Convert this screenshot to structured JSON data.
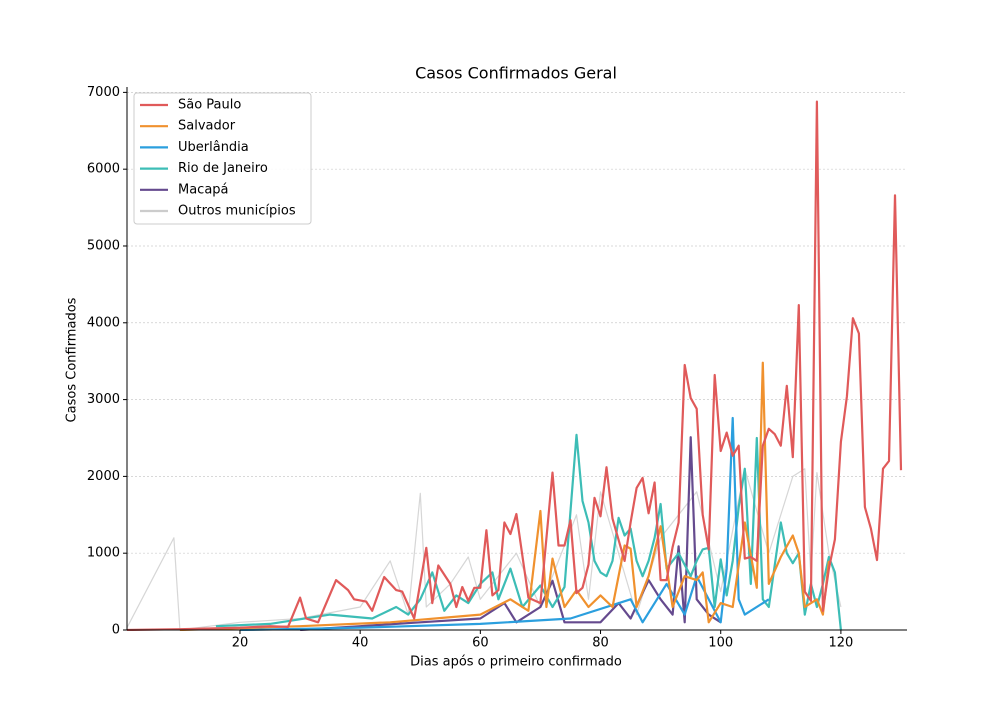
{
  "chart_data": {
    "type": "line",
    "title": "Casos Confirmados Geral",
    "x_label": "Dias após o primeiro confirmado",
    "y_label": "Casos Confirmados",
    "xlim": [
      1.2,
      131
    ],
    "ylim": [
      0,
      7070
    ],
    "xticks": [
      20,
      40,
      60,
      80,
      100,
      120
    ],
    "yticks": [
      0,
      1000,
      2000,
      3000,
      4000,
      5000,
      6000,
      7000
    ],
    "grid": true,
    "legend": "upper left",
    "series": [
      {
        "name": "São Paulo",
        "color": "#e05a5a",
        "x": [
          1,
          10,
          20,
          25,
          28,
          30,
          31,
          33,
          36,
          38,
          39,
          41,
          42,
          44,
          46,
          47,
          49,
          51,
          52,
          53,
          55,
          56,
          57,
          58,
          59,
          60,
          61,
          62,
          63,
          64,
          65,
          66,
          68,
          70,
          72,
          73,
          74,
          75,
          76,
          77,
          78,
          79,
          80,
          81,
          82,
          84,
          85,
          86,
          87,
          88,
          89,
          90,
          91,
          92,
          93,
          94,
          95,
          96,
          97,
          98,
          99,
          100,
          101,
          102,
          103,
          104,
          105,
          106,
          107,
          108,
          109,
          110,
          111,
          112,
          113,
          114,
          115,
          116,
          117,
          118,
          119,
          120,
          121,
          122,
          123,
          124,
          125,
          126,
          127,
          128,
          129,
          130
        ],
        "values": [
          0,
          10,
          30,
          50,
          40,
          420,
          150,
          100,
          650,
          520,
          400,
          370,
          250,
          690,
          520,
          500,
          150,
          1070,
          350,
          840,
          600,
          300,
          560,
          380,
          550,
          550,
          1300,
          450,
          520,
          1400,
          1250,
          1510,
          420,
          350,
          2050,
          1100,
          1100,
          1430,
          480,
          550,
          850,
          1720,
          1480,
          2120,
          1450,
          900,
          1400,
          1850,
          1980,
          1520,
          1920,
          650,
          650,
          1080,
          1400,
          3450,
          3020,
          2880,
          1500,
          1050,
          3320,
          2330,
          2570,
          2270,
          2400,
          930,
          950,
          900,
          2400,
          2620,
          2550,
          2400,
          3180,
          2250,
          4230,
          500,
          380,
          6880,
          250,
          800,
          1180,
          2450,
          3040,
          4060,
          3860,
          1600,
          1320,
          910,
          2100,
          2200,
          5660,
          2080
        ]
      },
      {
        "name": "Salvador",
        "color": "#f0912e",
        "x": [
          10,
          30,
          45,
          60,
          65,
          68,
          70,
          71,
          72,
          74,
          76,
          78,
          80,
          82,
          84,
          85,
          86,
          88,
          90,
          92,
          94,
          96,
          97,
          98,
          100,
          102,
          104,
          106,
          107,
          108,
          110,
          112,
          113,
          114,
          116,
          117,
          118
        ],
        "values": [
          0,
          50,
          100,
          200,
          400,
          250,
          1550,
          300,
          930,
          300,
          520,
          300,
          450,
          300,
          1100,
          1060,
          300,
          700,
          1350,
          300,
          700,
          650,
          750,
          100,
          350,
          300,
          1400,
          550,
          3480,
          600,
          950,
          1230,
          1000,
          300,
          400,
          200,
          900
        ]
      },
      {
        "name": "Uberlândia",
        "color": "#2b9fde",
        "x": [
          20,
          40,
          60,
          75,
          85,
          87,
          91,
          94,
          96,
          100,
          101,
          102,
          103,
          104,
          108
        ],
        "values": [
          0,
          30,
          80,
          150,
          400,
          100,
          600,
          200,
          700,
          100,
          800,
          2760,
          400,
          200,
          400
        ]
      },
      {
        "name": "Rio de Janeiro",
        "color": "#3dbdb6",
        "x": [
          16,
          25,
          35,
          42,
          46,
          48,
          50,
          52,
          54,
          56,
          58,
          60,
          62,
          63,
          65,
          67,
          70,
          72,
          74,
          76,
          77,
          78,
          79,
          80,
          81,
          82,
          83,
          84,
          85,
          86,
          87,
          88,
          89,
          90,
          91,
          92,
          93,
          95,
          96,
          97,
          98,
          99,
          100,
          101,
          102,
          103,
          104,
          105,
          106,
          107,
          108,
          110,
          111,
          112,
          113,
          114,
          115,
          116,
          117,
          118,
          119,
          120
        ],
        "values": [
          50,
          80,
          200,
          150,
          300,
          200,
          400,
          750,
          250,
          450,
          350,
          600,
          750,
          400,
          800,
          300,
          580,
          300,
          560,
          2540,
          1680,
          1400,
          900,
          750,
          700,
          900,
          1460,
          1230,
          1320,
          900,
          700,
          900,
          1200,
          1640,
          800,
          900,
          1000,
          700,
          900,
          1050,
          1070,
          300,
          920,
          450,
          900,
          1600,
          2100,
          600,
          2500,
          400,
          300,
          1400,
          1000,
          870,
          1000,
          200,
          600,
          300,
          600,
          950,
          750,
          0
        ]
      },
      {
        "name": "Macapá",
        "color": "#654a8e",
        "x": [
          30,
          40,
          50,
          60,
          64,
          66,
          70,
          72,
          74,
          80,
          83,
          85,
          88,
          90,
          92,
          93,
          94,
          95,
          96,
          98,
          100
        ],
        "values": [
          0,
          50,
          100,
          150,
          350,
          100,
          300,
          640,
          100,
          100,
          350,
          150,
          650,
          400,
          200,
          1090,
          100,
          2510,
          400,
          200,
          100
        ]
      },
      {
        "name": "Outros municípios",
        "color": "#cccccc",
        "x": [
          1,
          9,
          10,
          20,
          30,
          40,
          45,
          48,
          50,
          51,
          55,
          58,
          60,
          66,
          70,
          74,
          76,
          78,
          80,
          86,
          90,
          96,
          100,
          104,
          108,
          112,
          114,
          115,
          116,
          118,
          120
        ],
        "values": [
          0,
          1200,
          0,
          100,
          150,
          300,
          900,
          200,
          1780,
          300,
          600,
          950,
          400,
          1000,
          300,
          1100,
          1500,
          400,
          1800,
          200,
          1200,
          1800,
          500,
          2100,
          1000,
          2000,
          2100,
          700,
          2050,
          1000,
          300
        ]
      }
    ]
  }
}
